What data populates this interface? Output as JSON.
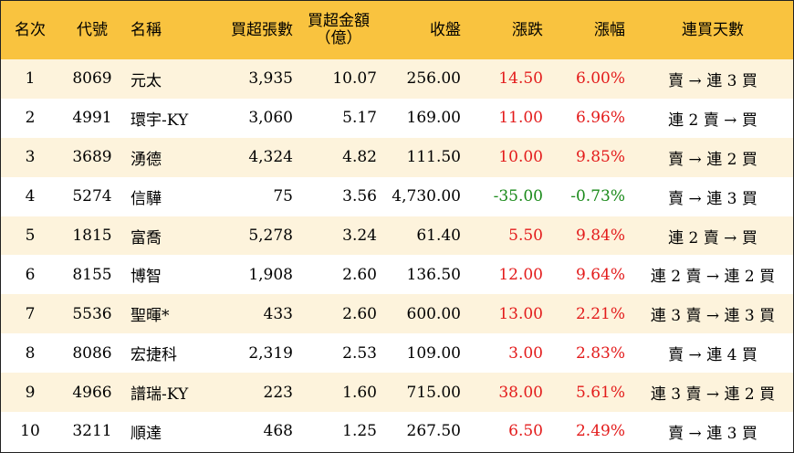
{
  "header": {
    "rank": "名次",
    "code": "代號",
    "name": "名稱",
    "net_lots": "買超張數",
    "net_amount_line1": "買超金額",
    "net_amount_line2": "（億）",
    "close": "收盤",
    "change": "漲跌",
    "pct": "漲幅",
    "days": "連買天數"
  },
  "colors": {
    "header_bg": "#f9c33f",
    "stripe_bg": "#fdf3dc",
    "up": "#e31b1b",
    "down": "#1a8a1a"
  },
  "rows": [
    {
      "rank": "1",
      "code": "8069",
      "name": "元太",
      "lots": "3,935",
      "amount": "10.07",
      "close": "256.00",
      "change": "14.50",
      "pct": "6.00%",
      "days": "賣 → 連 3 買",
      "dir": "up"
    },
    {
      "rank": "2",
      "code": "4991",
      "name": "環宇-KY",
      "lots": "3,060",
      "amount": "5.17",
      "close": "169.00",
      "change": "11.00",
      "pct": "6.96%",
      "days": "連 2 賣 → 買",
      "dir": "up"
    },
    {
      "rank": "3",
      "code": "3689",
      "name": "湧德",
      "lots": "4,324",
      "amount": "4.82",
      "close": "111.50",
      "change": "10.00",
      "pct": "9.85%",
      "days": "賣 → 連 2 買",
      "dir": "up"
    },
    {
      "rank": "4",
      "code": "5274",
      "name": "信驊",
      "lots": "75",
      "amount": "3.56",
      "close": "4,730.00",
      "change": "-35.00",
      "pct": "-0.73%",
      "days": "賣 → 連 3 買",
      "dir": "down"
    },
    {
      "rank": "5",
      "code": "1815",
      "name": "富喬",
      "lots": "5,278",
      "amount": "3.24",
      "close": "61.40",
      "change": "5.50",
      "pct": "9.84%",
      "days": "連 2 賣 → 買",
      "dir": "up"
    },
    {
      "rank": "6",
      "code": "8155",
      "name": "博智",
      "lots": "1,908",
      "amount": "2.60",
      "close": "136.50",
      "change": "12.00",
      "pct": "9.64%",
      "days": "連 2 賣 → 連 2 買",
      "dir": "up"
    },
    {
      "rank": "7",
      "code": "5536",
      "name": "聖暉*",
      "lots": "433",
      "amount": "2.60",
      "close": "600.00",
      "change": "13.00",
      "pct": "2.21%",
      "days": "連 3 賣 → 連 3 買",
      "dir": "up"
    },
    {
      "rank": "8",
      "code": "8086",
      "name": "宏捷科",
      "lots": "2,319",
      "amount": "2.53",
      "close": "109.00",
      "change": "3.00",
      "pct": "2.83%",
      "days": "賣 → 連 4 買",
      "dir": "up"
    },
    {
      "rank": "9",
      "code": "4966",
      "name": "譜瑞-KY",
      "lots": "223",
      "amount": "1.60",
      "close": "715.00",
      "change": "38.00",
      "pct": "5.61%",
      "days": "連 3 賣 → 連 2 買",
      "dir": "up"
    },
    {
      "rank": "10",
      "code": "3211",
      "name": "順達",
      "lots": "468",
      "amount": "1.25",
      "close": "267.50",
      "change": "6.50",
      "pct": "2.49%",
      "days": "賣 → 連 3 買",
      "dir": "up"
    }
  ]
}
